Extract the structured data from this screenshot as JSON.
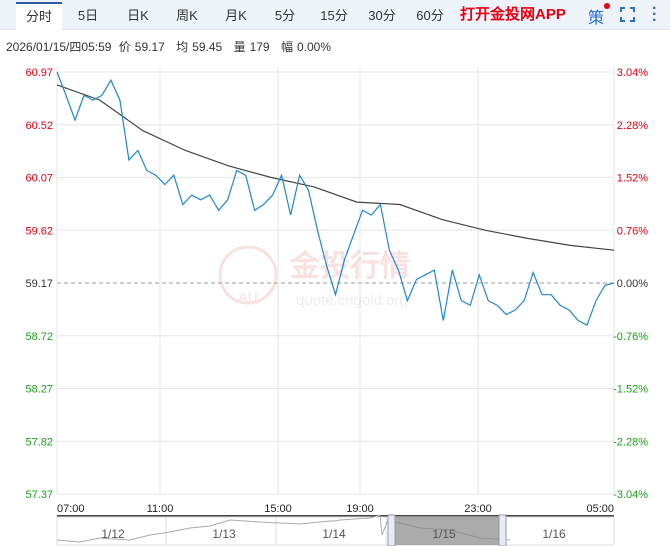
{
  "tabs": [
    "分时",
    "5日",
    "日K",
    "周K",
    "月K",
    "5分",
    "15分",
    "30分",
    "60分"
  ],
  "app_link": "打开金投网APP",
  "strategy_label": "策",
  "info": {
    "datetime": "2026/01/15/四05:59",
    "price_label": "价",
    "price": "59.17",
    "avg_label": "均",
    "avg": "59.45",
    "vol_label": "量",
    "vol": "179",
    "chg_label": "幅",
    "chg": "0.00%"
  },
  "watermark": {
    "brand": "金投行情",
    "url": "quote.cngold.org",
    "logo": "AU"
  },
  "colors": {
    "up": "#e60012",
    "down": "#1aa31a",
    "price_line": "#1f88d0",
    "avg_line": "#444444",
    "accent": "#2a6fc9"
  },
  "chart_data": {
    "type": "line",
    "ylim": [
      57.37,
      60.97
    ],
    "base": 59.17,
    "y_ticks": [
      "60.97",
      "60.52",
      "60.07",
      "59.62",
      "59.17",
      "58.72",
      "58.27",
      "57.82",
      "57.37"
    ],
    "y_pct_ticks": [
      "3.04%",
      "2.28%",
      "1.52%",
      "0.76%",
      "0.00%",
      "-0.76%",
      "-1.52%",
      "-2.28%",
      "-3.04%"
    ],
    "x_ticks": [
      "07:00",
      "11:00",
      "15:00",
      "19:00",
      "23:00",
      "05:00"
    ],
    "series": [
      {
        "name": "价",
        "values": [
          60.97,
          60.77,
          60.56,
          60.77,
          60.73,
          60.77,
          60.9,
          60.73,
          60.22,
          60.3,
          60.13,
          60.09,
          60.01,
          60.09,
          59.84,
          59.92,
          59.88,
          59.92,
          59.79,
          59.88,
          60.13,
          60.09,
          59.79,
          59.84,
          59.92,
          60.09,
          59.75,
          60.09,
          59.96,
          59.62,
          59.32,
          59.07,
          59.37,
          59.58,
          59.79,
          59.75,
          59.84,
          59.45,
          59.28,
          59.02,
          59.2,
          59.24,
          59.28,
          58.85,
          59.28,
          59.02,
          58.98,
          59.24,
          59.02,
          58.98,
          58.9,
          58.94,
          59.02,
          59.26,
          59.07,
          59.07,
          58.98,
          58.94,
          58.85,
          58.81,
          59.02,
          59.15,
          59.17
        ]
      },
      {
        "name": "均",
        "values": [
          60.86,
          60.73,
          60.47,
          60.3,
          60.17,
          60.07,
          59.99,
          59.86,
          59.84,
          59.71,
          59.62,
          59.55,
          59.49,
          59.45
        ]
      }
    ],
    "navigator": {
      "dates": [
        "1/12",
        "1/13",
        "1/14",
        "1/15",
        "1/16"
      ]
    }
  }
}
